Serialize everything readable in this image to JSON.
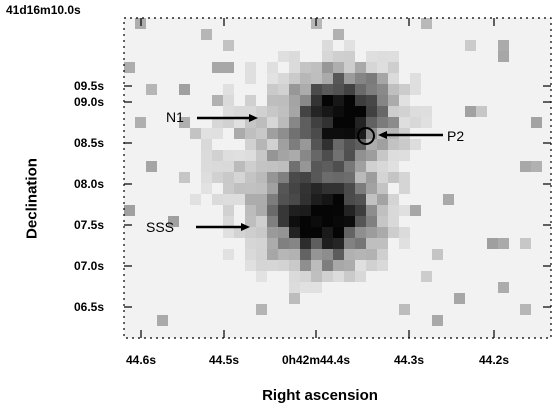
{
  "figure": {
    "dec_top_label": "41d16m10.0s",
    "y_axis_title": "Declination",
    "x_axis_title": "Right ascension",
    "y_ticks": [
      "09.5s",
      "09.0s",
      "08.5s",
      "08.0s",
      "07.5s",
      "07.0s",
      "06.5s"
    ],
    "x_ticks": [
      "44.6s",
      "44.5s",
      "0h42m44.4s",
      "44.3s",
      "44.2s"
    ],
    "annotations": {
      "n1": "N1",
      "p2": "P2",
      "sss": "SSS"
    },
    "colors": {
      "frame": "#000000",
      "background_pixel": "#f0f0f0",
      "source_core": "#0a0a0a"
    }
  }
}
